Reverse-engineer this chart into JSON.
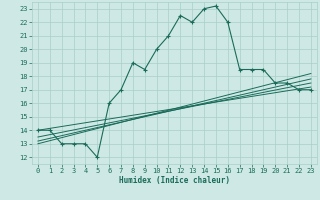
{
  "xlabel": "Humidex (Indice chaleur)",
  "xlim": [
    -0.5,
    23.5
  ],
  "ylim": [
    11.5,
    23.5
  ],
  "xticks": [
    0,
    1,
    2,
    3,
    4,
    5,
    6,
    7,
    8,
    9,
    10,
    11,
    12,
    13,
    14,
    15,
    16,
    17,
    18,
    19,
    20,
    21,
    22,
    23
  ],
  "yticks": [
    12,
    13,
    14,
    15,
    16,
    17,
    18,
    19,
    20,
    21,
    22,
    23
  ],
  "bg_color": "#cee9e5",
  "grid_color": "#a8cfc9",
  "line_color": "#1a6b5a",
  "main_x": [
    0,
    1,
    2,
    3,
    4,
    5,
    6,
    7,
    8,
    9,
    10,
    11,
    12,
    13,
    14,
    15,
    16,
    17,
    18,
    19,
    20,
    21,
    22,
    23
  ],
  "main_y": [
    14,
    14,
    13,
    13,
    13,
    12,
    16,
    17,
    19,
    18.5,
    20,
    21,
    22.5,
    22,
    23,
    23.2,
    22,
    18.5,
    18.5,
    18.5,
    17.5,
    17.5,
    17,
    17
  ],
  "ref_lines": [
    {
      "x0": 0,
      "y0": 14.0,
      "x1": 23,
      "y1": 17.2
    },
    {
      "x0": 0,
      "y0": 13.5,
      "x1": 23,
      "y1": 17.5
    },
    {
      "x0": 0,
      "y0": 13.2,
      "x1": 23,
      "y1": 17.8
    },
    {
      "x0": 0,
      "y0": 13.0,
      "x1": 23,
      "y1": 18.2
    }
  ]
}
